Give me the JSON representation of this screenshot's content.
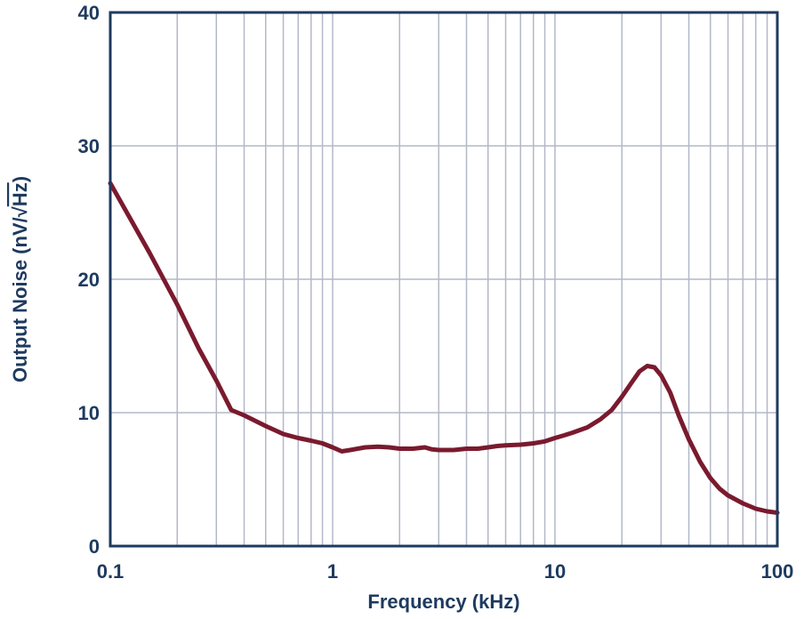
{
  "chart_data": {
    "type": "line",
    "xlabel": "Frequency (kHz)",
    "ylabel": "Output Noise (nV/√Hz)",
    "ylabel_main": "Output Noise (nV/",
    "ylabel_radicand": "Hz",
    "ylabel_close": ")",
    "xscale": "log",
    "xlim": [
      0.1,
      100
    ],
    "ylim": [
      0,
      40
    ],
    "grid": true,
    "x_ticks": [
      {
        "value": 0.1,
        "label": "0.1"
      },
      {
        "value": 1,
        "label": "1"
      },
      {
        "value": 10,
        "label": "10"
      },
      {
        "value": 100,
        "label": "100"
      }
    ],
    "y_ticks": [
      {
        "value": 0,
        "label": "0"
      },
      {
        "value": 10,
        "label": "10"
      },
      {
        "value": 20,
        "label": "20"
      },
      {
        "value": 30,
        "label": "30"
      },
      {
        "value": 40,
        "label": "40"
      }
    ],
    "series": [
      {
        "color": "#7a1a2e",
        "points": [
          [
            0.1,
            27.2
          ],
          [
            0.15,
            22.0
          ],
          [
            0.2,
            18.1
          ],
          [
            0.25,
            14.8
          ],
          [
            0.3,
            12.4
          ],
          [
            0.35,
            10.2
          ],
          [
            0.4,
            9.8
          ],
          [
            0.5,
            9.0
          ],
          [
            0.6,
            8.4
          ],
          [
            0.7,
            8.1
          ],
          [
            0.8,
            7.9
          ],
          [
            0.9,
            7.7
          ],
          [
            1.0,
            7.4
          ],
          [
            1.1,
            7.1
          ],
          [
            1.2,
            7.2
          ],
          [
            1.4,
            7.4
          ],
          [
            1.6,
            7.45
          ],
          [
            1.8,
            7.4
          ],
          [
            2.0,
            7.3
          ],
          [
            2.3,
            7.3
          ],
          [
            2.6,
            7.4
          ],
          [
            2.8,
            7.25
          ],
          [
            3.0,
            7.2
          ],
          [
            3.5,
            7.2
          ],
          [
            4.0,
            7.3
          ],
          [
            4.5,
            7.3
          ],
          [
            5.0,
            7.4
          ],
          [
            5.5,
            7.5
          ],
          [
            6.0,
            7.55
          ],
          [
            7.0,
            7.6
          ],
          [
            8.0,
            7.7
          ],
          [
            9.0,
            7.85
          ],
          [
            10,
            8.1
          ],
          [
            11,
            8.3
          ],
          [
            12,
            8.5
          ],
          [
            14,
            8.9
          ],
          [
            16,
            9.5
          ],
          [
            18,
            10.2
          ],
          [
            20,
            11.2
          ],
          [
            22,
            12.2
          ],
          [
            24,
            13.1
          ],
          [
            26,
            13.5
          ],
          [
            28,
            13.4
          ],
          [
            30,
            12.8
          ],
          [
            33,
            11.5
          ],
          [
            36,
            9.8
          ],
          [
            40,
            8.0
          ],
          [
            45,
            6.3
          ],
          [
            50,
            5.1
          ],
          [
            55,
            4.3
          ],
          [
            60,
            3.8
          ],
          [
            70,
            3.2
          ],
          [
            80,
            2.8
          ],
          [
            90,
            2.6
          ],
          [
            100,
            2.5
          ]
        ]
      }
    ]
  }
}
